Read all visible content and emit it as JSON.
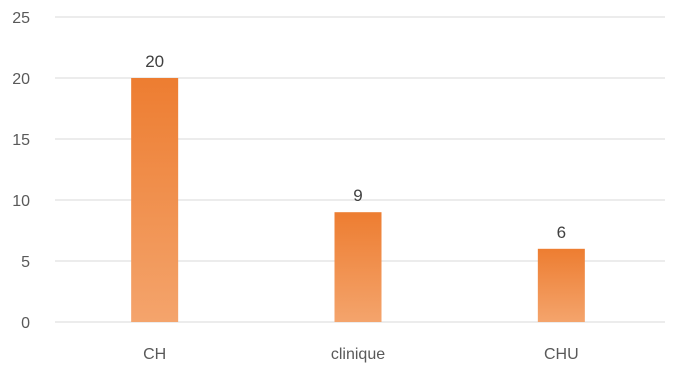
{
  "chart_data": {
    "type": "bar",
    "categories": [
      "CH",
      "clinique",
      "CHU"
    ],
    "values": [
      20,
      9,
      6
    ],
    "data_labels": [
      "20",
      "9",
      "6"
    ],
    "ylim": [
      0,
      25
    ],
    "y_ticks": [
      0,
      5,
      10,
      15,
      20,
      25
    ],
    "y_tick_labels": [
      "0",
      "5",
      "10",
      "15",
      "20",
      "25"
    ],
    "grid": true,
    "legend": "none",
    "colors": {
      "bar_top": "#ed7d31",
      "bar_bottom": "#f4a46c",
      "grid": "#d9d9d9",
      "axis_text": "#595959",
      "label_text": "#404040"
    }
  }
}
